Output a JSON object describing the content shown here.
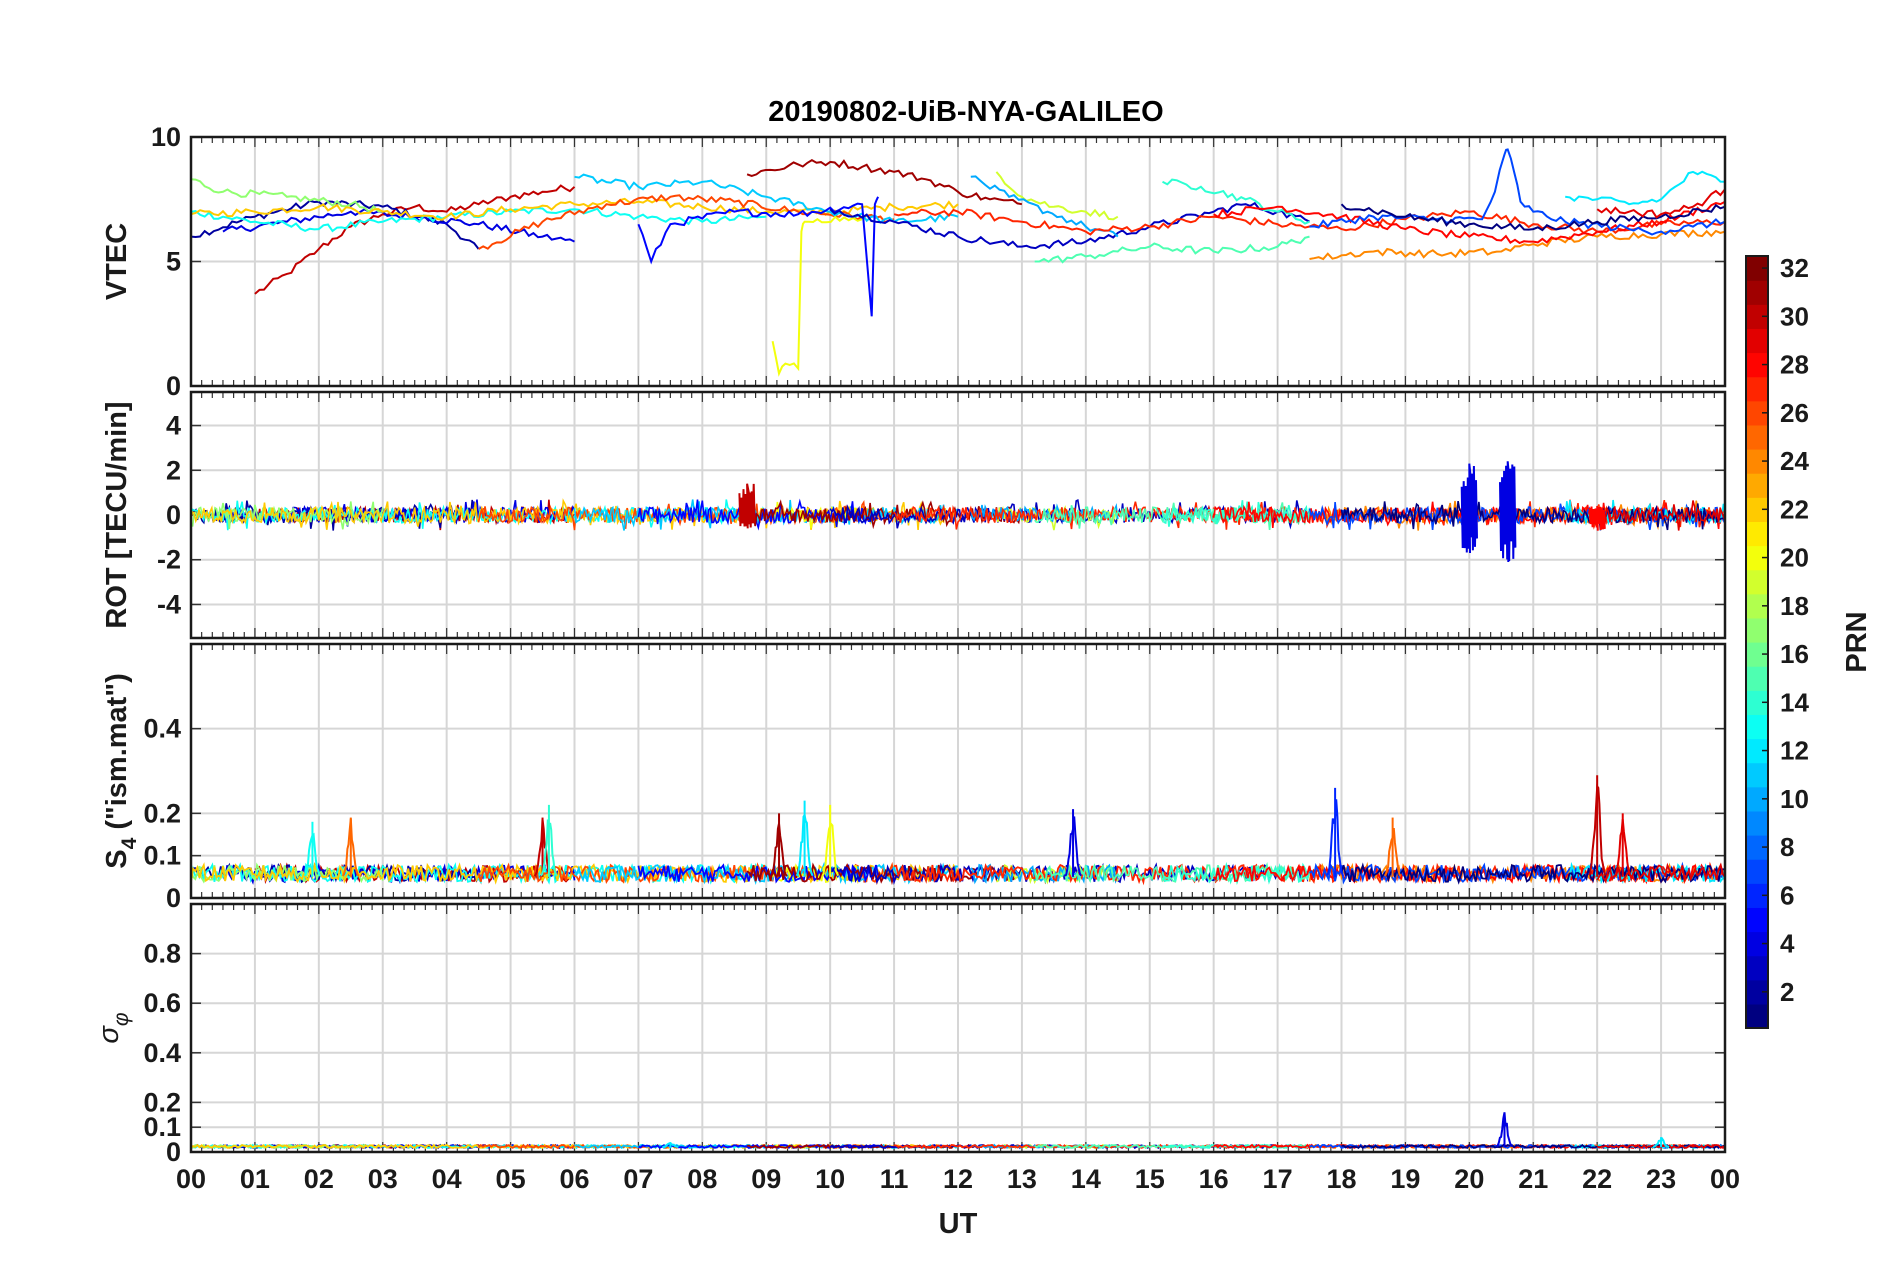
{
  "chart_data": {
    "type": "line",
    "title": "20190802-UiB-NYA-GALILEO",
    "xlabel": "UT",
    "x_tick_labels": [
      "00",
      "01",
      "02",
      "03",
      "04",
      "05",
      "06",
      "07",
      "08",
      "09",
      "10",
      "11",
      "12",
      "13",
      "14",
      "15",
      "16",
      "17",
      "18",
      "19",
      "20",
      "21",
      "22",
      "23",
      "00"
    ],
    "xlim_hours": [
      0,
      24
    ],
    "grid": true,
    "colorbar": {
      "label": "PRN",
      "range": [
        1,
        32
      ],
      "ticks": [
        "2",
        "4",
        "6",
        "8",
        "10",
        "12",
        "14",
        "16",
        "18",
        "20",
        "22",
        "24",
        "26",
        "28",
        "30",
        "32"
      ],
      "colormap": "jet",
      "placement": "right"
    },
    "panels": [
      {
        "name": "vtec",
        "ylabel": "VTEC",
        "ylim": [
          0,
          10
        ],
        "y_ticks": [
          "0",
          "5",
          "10"
        ],
        "series": [
          {
            "prn": 30,
            "x": [
              1.0,
              1.5,
              2.0,
              2.5,
              3.0,
              3.5,
              4.0,
              4.5,
              5.0,
              5.5,
              6.0
            ],
            "values": [
              3.7,
              4.5,
              5.5,
              6.4,
              6.9,
              7.2,
              7.0,
              7.3,
              7.6,
              7.8,
              8.0
            ]
          },
          {
            "prn": 2,
            "x": [
              0.0,
              1.0,
              2.0,
              3.0,
              4.0,
              4.5
            ],
            "values": [
              6.0,
              6.8,
              7.4,
              7.2,
              6.5,
              5.5
            ]
          },
          {
            "prn": 4,
            "x": [
              0.5,
              1.5,
              2.5,
              3.5,
              4.5,
              5.5,
              6.0
            ],
            "values": [
              6.2,
              6.6,
              7.0,
              6.8,
              6.5,
              6.0,
              5.8
            ]
          },
          {
            "prn": 13,
            "x": [
              0.0,
              1.0,
              2.0,
              3.0,
              4.0,
              5.0,
              6.0,
              7.0,
              8.0,
              9.0
            ],
            "values": [
              7.0,
              6.6,
              6.3,
              6.6,
              6.8,
              7.0,
              7.1,
              6.8,
              6.6,
              6.8
            ]
          },
          {
            "prn": 17,
            "x": [
              0.0,
              0.5,
              1.5,
              2.5,
              3.0
            ],
            "values": [
              8.3,
              7.8,
              7.6,
              7.3,
              7.0
            ]
          },
          {
            "prn": 22,
            "x": [
              0.0,
              1.0,
              2.0,
              3.0,
              4.0,
              5.0,
              6.0,
              7.0,
              8.0,
              9.0,
              10.0,
              11.0,
              12.0
            ],
            "values": [
              6.9,
              7.0,
              7.2,
              7.0,
              6.8,
              7.1,
              7.3,
              7.4,
              7.2,
              7.0,
              7.0,
              7.2,
              7.3
            ]
          },
          {
            "prn": 26,
            "x": [
              4.5,
              5.5,
              6.5,
              7.5,
              8.5,
              9.5,
              10.5,
              11.0
            ],
            "values": [
              5.5,
              6.6,
              7.3,
              7.6,
              7.4,
              7.0,
              6.8,
              6.7
            ]
          },
          {
            "prn": 11,
            "x": [
              6.0,
              7.0,
              8.0,
              9.0,
              10.0,
              11.0,
              12.0
            ],
            "values": [
              8.4,
              8.0,
              8.2,
              7.6,
              7.0,
              6.6,
              6.8
            ]
          },
          {
            "prn": 20,
            "x": [
              9.1,
              9.2,
              9.3,
              9.5,
              9.55,
              9.6,
              9.8,
              10.5
            ],
            "values": [
              1.8,
              0.5,
              0.9,
              0.7,
              6.2,
              6.6,
              6.7,
              6.7
            ]
          },
          {
            "prn": 5,
            "x": [
              7.0,
              7.2,
              7.5,
              8.5,
              9.5,
              10.5,
              10.65,
              10.7,
              10.75
            ],
            "values": [
              6.5,
              5.0,
              6.5,
              7.0,
              6.9,
              7.3,
              2.8,
              7.3,
              7.6
            ]
          },
          {
            "prn": 31,
            "x": [
              8.7,
              9.5,
              10.0,
              10.5,
              11.0,
              11.5,
              12.0,
              12.5,
              13.0
            ],
            "values": [
              8.5,
              8.9,
              9.0,
              8.8,
              8.6,
              8.3,
              7.8,
              7.5,
              7.3
            ]
          },
          {
            "prn": 3,
            "x": [
              10.0,
              11.0,
              12.0,
              13.0,
              14.0,
              15.0,
              16.0,
              16.5,
              17.0,
              17.5
            ],
            "values": [
              7.1,
              6.6,
              6.0,
              5.6,
              5.8,
              6.4,
              7.0,
              7.3,
              7.0,
              6.6
            ]
          },
          {
            "prn": 19,
            "x": [
              12.6,
              13.0,
              13.5,
              14.0,
              14.5
            ],
            "values": [
              8.6,
              7.6,
              7.2,
              7.0,
              6.8
            ]
          },
          {
            "prn": 10,
            "x": [
              12.2,
              12.8,
              13.4,
              14.0,
              14.5
            ],
            "values": [
              8.4,
              7.6,
              7.0,
              6.4,
              6.0
            ]
          },
          {
            "prn": 27,
            "x": [
              11.0,
              12.0,
              13.0,
              14.0,
              15.0,
              16.0,
              17.0,
              18.0,
              19.0,
              20.0,
              21.0,
              22.0,
              23.0,
              24.0
            ],
            "values": [
              6.9,
              7.0,
              6.6,
              6.2,
              6.4,
              6.8,
              6.5,
              6.3,
              6.7,
              7.0,
              6.5,
              6.2,
              6.5,
              6.6
            ]
          },
          {
            "prn": 15,
            "x": [
              13.2,
              14.0,
              14.5,
              15.0,
              16.0,
              17.0,
              17.5
            ],
            "values": [
              5.0,
              5.2,
              5.4,
              5.6,
              5.4,
              5.6,
              6.0
            ]
          },
          {
            "prn": 14,
            "x": [
              15.2,
              15.8,
              16.5,
              17.0,
              17.5
            ],
            "values": [
              8.2,
              8.0,
              7.5,
              7.0,
              6.6
            ]
          },
          {
            "prn": 24,
            "x": [
              17.5,
              18.5,
              19.5,
              20.5,
              21.0,
              22.0,
              23.0,
              24.0
            ],
            "values": [
              5.1,
              5.4,
              5.3,
              5.4,
              5.7,
              6.0,
              6.1,
              6.2
            ]
          },
          {
            "prn": 28,
            "x": [
              16.0,
              17.0,
              18.0,
              19.0,
              20.0,
              21.0,
              22.0,
              23.0,
              24.0
            ],
            "values": [
              6.9,
              7.2,
              6.8,
              6.3,
              6.0,
              5.8,
              6.2,
              6.6,
              7.4
            ]
          },
          {
            "prn": 7,
            "x": [
              17.5,
              18.5,
              19.5,
              20.2,
              20.4,
              20.55,
              20.6,
              20.7,
              20.8,
              21.0,
              21.5,
              22.5,
              23.0,
              23.5,
              24.0
            ],
            "values": [
              6.4,
              6.8,
              6.7,
              6.7,
              7.8,
              9.3,
              9.5,
              8.6,
              7.4,
              7.0,
              6.6,
              6.3,
              6.2,
              6.4,
              6.6
            ]
          },
          {
            "prn": 12,
            "x": [
              21.5,
              22.0,
              22.5,
              23.0,
              23.5,
              24.0
            ],
            "values": [
              7.6,
              7.5,
              7.3,
              7.5,
              8.6,
              8.2
            ]
          },
          {
            "prn": 1,
            "x": [
              18.0,
              19.0,
              20.0,
              21.0,
              22.0,
              23.0,
              24.0
            ],
            "values": [
              7.3,
              6.8,
              6.5,
              6.3,
              6.6,
              6.8,
              7.2
            ]
          },
          {
            "prn": 29,
            "x": [
              22.0,
              22.5,
              23.0,
              23.5,
              24.0
            ],
            "values": [
              7.1,
              7.0,
              6.9,
              7.2,
              7.9
            ]
          }
        ]
      },
      {
        "name": "rot",
        "ylabel": "ROT [TECU/min]",
        "ylim": [
          -5.5,
          5.5
        ],
        "y_ticks": [
          "-4",
          "-2",
          "0",
          "2",
          "4"
        ],
        "y_tick_values": [
          -4,
          -2,
          0,
          2,
          4
        ],
        "noise_amplitude": 0.35,
        "events": [
          {
            "x": 8.7,
            "prn": 30,
            "values": [
              1.4,
              -0.6
            ]
          },
          {
            "x": 20.0,
            "prn": 4,
            "values": [
              2.3,
              -1.7
            ]
          },
          {
            "x": 20.6,
            "prn": 4,
            "values": [
              2.4,
              -2.1
            ]
          },
          {
            "x": 22.0,
            "prn": 28,
            "values": [
              0.4,
              -0.7
            ]
          }
        ]
      },
      {
        "name": "s4",
        "ylabel": "S4 (\"ism.mat\")",
        "ylabel_main": "S",
        "ylabel_sub": "4",
        "ylabel_rest": " (\"ism.mat\")",
        "ylim": [
          0,
          0.6
        ],
        "y_ticks": [
          "0",
          "0.1",
          "0.2",
          "0.4"
        ],
        "y_tick_values": [
          0,
          0.1,
          0.2,
          0.4
        ],
        "baseline": 0.05,
        "peaks": [
          {
            "x": 1.9,
            "prn": 13,
            "value": 0.18
          },
          {
            "x": 2.5,
            "prn": 25,
            "value": 0.19
          },
          {
            "x": 5.5,
            "prn": 30,
            "value": 0.19
          },
          {
            "x": 5.6,
            "prn": 14,
            "value": 0.22
          },
          {
            "x": 9.2,
            "prn": 31,
            "value": 0.2
          },
          {
            "x": 9.6,
            "prn": 12,
            "value": 0.23
          },
          {
            "x": 10.0,
            "prn": 20,
            "value": 0.22
          },
          {
            "x": 13.8,
            "prn": 4,
            "value": 0.21
          },
          {
            "x": 17.9,
            "prn": 6,
            "value": 0.26
          },
          {
            "x": 18.8,
            "prn": 25,
            "value": 0.19
          },
          {
            "x": 22.0,
            "prn": 30,
            "value": 0.29
          },
          {
            "x": 22.4,
            "prn": 29,
            "value": 0.2
          }
        ]
      },
      {
        "name": "sigma_phi",
        "ylabel": "σφ",
        "ylabel_main": "σ",
        "ylabel_sub": "φ",
        "ylim": [
          0,
          1.0
        ],
        "y_ticks": [
          "0",
          "0.1",
          "0.2",
          "0.4",
          "0.6",
          "0.8"
        ],
        "y_tick_values": [
          0,
          0.1,
          0.2,
          0.4,
          0.6,
          0.8
        ],
        "baseline": 0.02,
        "peaks": [
          {
            "x": 20.55,
            "prn": 4,
            "value": 0.16
          },
          {
            "x": 7.5,
            "prn": 12,
            "value": 0.04
          },
          {
            "x": 23.0,
            "prn": 12,
            "value": 0.06
          }
        ]
      }
    ]
  }
}
